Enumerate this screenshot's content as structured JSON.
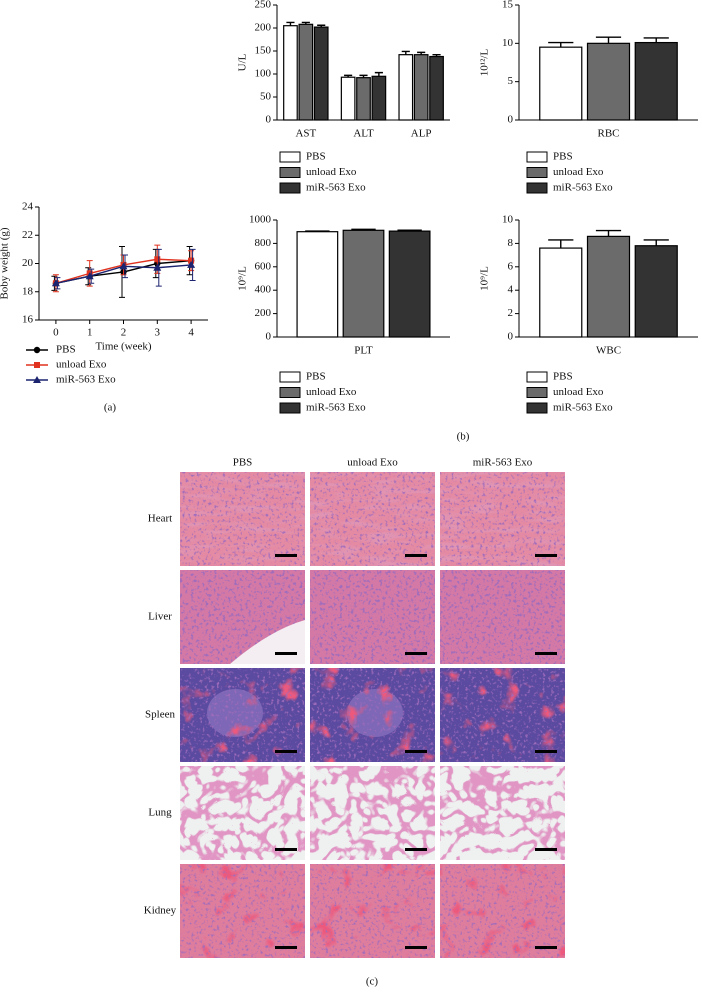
{
  "chart_data": [
    {
      "type": "line",
      "ylabel": "Boby weight (g)",
      "xlabel": "Time (week)",
      "x": [
        0,
        1,
        2,
        3,
        4
      ],
      "xlim": [
        -0.5,
        4.5
      ],
      "xticks": [
        0,
        1,
        2,
        3,
        4
      ],
      "ylim": [
        16,
        24
      ],
      "yticks": [
        16,
        18,
        20,
        22,
        24
      ],
      "series": [
        {
          "name": "PBS",
          "color": "#000000",
          "marker": "circle",
          "values": [
            18.6,
            19.1,
            19.4,
            20.0,
            20.2
          ],
          "errors": [
            0.5,
            0.6,
            1.8,
            1.0,
            1.0
          ]
        },
        {
          "name": "unload Exo",
          "color": "#e0321e",
          "marker": "square",
          "values": [
            18.6,
            19.3,
            19.9,
            20.3,
            20.2
          ],
          "errors": [
            0.6,
            0.9,
            0.7,
            1.0,
            0.7
          ]
        },
        {
          "name": "miR-563 Exo",
          "color": "#1c2470",
          "marker": "triangle",
          "values": [
            18.6,
            19.1,
            19.8,
            19.7,
            19.9
          ],
          "errors": [
            0.4,
            0.5,
            0.8,
            1.3,
            1.1
          ]
        }
      ]
    },
    {
      "type": "bar",
      "ylabel": "U/L",
      "categories": [
        "AST",
        "ALT",
        "ALP"
      ],
      "ylim": [
        0,
        250
      ],
      "yticks": [
        0,
        50,
        100,
        150,
        200,
        250
      ],
      "series": [
        {
          "name": "PBS",
          "color": "#ffffff",
          "values": [
            205,
            93,
            142
          ],
          "errors": [
            7,
            4,
            7
          ]
        },
        {
          "name": "unload Exo",
          "color": "#6b6b6b",
          "values": [
            208,
            92,
            142
          ],
          "errors": [
            4,
            5,
            5
          ]
        },
        {
          "name": "miR-563 Exo",
          "color": "#333333",
          "values": [
            202,
            95,
            138
          ],
          "errors": [
            4,
            8,
            4
          ]
        }
      ]
    },
    {
      "type": "bar",
      "ylabel": "10¹²/L",
      "categories": [
        "RBC"
      ],
      "ylim": [
        0,
        15
      ],
      "yticks": [
        0,
        5,
        10,
        15
      ],
      "series": [
        {
          "name": "PBS",
          "color": "#ffffff",
          "values": [
            9.5
          ],
          "errors": [
            0.6
          ]
        },
        {
          "name": "unload Exo",
          "color": "#6b6b6b",
          "values": [
            10.0
          ],
          "errors": [
            0.8
          ]
        },
        {
          "name": "miR-563 Exo",
          "color": "#333333",
          "values": [
            10.1
          ],
          "errors": [
            0.6
          ]
        }
      ]
    },
    {
      "type": "bar",
      "ylabel": "10⁹/L",
      "categories": [
        "PLT"
      ],
      "ylim": [
        0,
        1000
      ],
      "yticks": [
        0,
        200,
        400,
        600,
        800,
        1000
      ],
      "series": [
        {
          "name": "PBS",
          "color": "#ffffff",
          "values": [
            900
          ],
          "errors": [
            5
          ]
        },
        {
          "name": "unload Exo",
          "color": "#6b6b6b",
          "values": [
            912
          ],
          "errors": [
            8
          ]
        },
        {
          "name": "miR-563 Exo",
          "color": "#333333",
          "values": [
            905
          ],
          "errors": [
            8
          ]
        }
      ]
    },
    {
      "type": "bar",
      "ylabel": "10⁹/L",
      "categories": [
        "WBC"
      ],
      "ylim": [
        0,
        10
      ],
      "yticks": [
        0,
        2,
        4,
        6,
        8,
        10
      ],
      "series": [
        {
          "name": "PBS",
          "color": "#ffffff",
          "values": [
            7.6
          ],
          "errors": [
            0.7
          ]
        },
        {
          "name": "unload Exo",
          "color": "#6b6b6b",
          "values": [
            8.6
          ],
          "errors": [
            0.5
          ]
        },
        {
          "name": "miR-563 Exo",
          "color": "#333333",
          "values": [
            7.8
          ],
          "errors": [
            0.5
          ]
        }
      ]
    }
  ],
  "histology": {
    "columns": [
      "PBS",
      "unload Exo",
      "miR-563 Exo"
    ],
    "rows": [
      "Heart",
      "Liver",
      "Spleen",
      "Lung",
      "Kidney"
    ]
  },
  "panels": [
    "(a)",
    "(b)",
    "(c)"
  ]
}
